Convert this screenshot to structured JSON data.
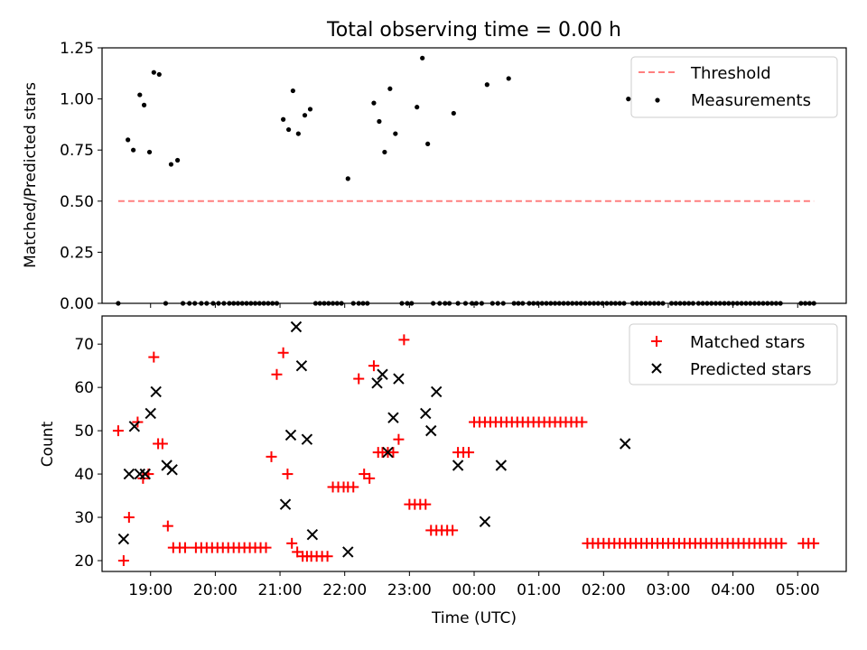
{
  "figure": {
    "title": "Total observing time = 0.00 h",
    "xlabel": "Time (UTC)"
  },
  "chart_data": [
    {
      "type": "scatter",
      "title": "Total observing time = 0.00 h",
      "ylabel": "Matched/Predicted stars",
      "xlim": [
        "18:15",
        "05:45"
      ],
      "ylim": [
        0,
        1.25
      ],
      "yticks": [
        0.0,
        0.25,
        0.5,
        0.75,
        1.0,
        1.25
      ],
      "ytick_labels": [
        "0.00",
        "0.25",
        "0.50",
        "0.75",
        "1.00",
        "1.25"
      ],
      "grid": false,
      "legend": "top-right",
      "threshold": {
        "name": "Threshold",
        "value": 0.5,
        "x_range": [
          "18:30",
          "05:15"
        ],
        "color": "#ff0000",
        "alpha": 0.5,
        "style": "dashed"
      },
      "series": [
        {
          "name": "Measurements",
          "marker": "dot",
          "color": "#000000",
          "x": [
            "18:30",
            "18:39",
            "18:44",
            "18:50",
            "18:54",
            "18:59",
            "19:03",
            "19:08",
            "19:14",
            "19:19",
            "19:25",
            "19:30",
            "19:36",
            "19:41",
            "19:47",
            "19:52",
            "19:58",
            "20:03",
            "20:08",
            "20:13",
            "20:17",
            "20:21",
            "20:25",
            "20:29",
            "20:33",
            "20:37",
            "20:41",
            "20:45",
            "20:49",
            "20:53",
            "20:57",
            "21:03",
            "21:08",
            "21:12",
            "21:17",
            "21:23",
            "21:28",
            "21:33",
            "21:37",
            "21:41",
            "21:45",
            "21:49",
            "21:53",
            "21:57",
            "22:03",
            "22:08",
            "22:13",
            "22:17",
            "22:21",
            "22:27",
            "22:32",
            "22:37",
            "22:42",
            "22:47",
            "22:53",
            "22:58",
            "23:02",
            "23:07",
            "23:12",
            "23:17",
            "23:22",
            "23:28",
            "23:33",
            "23:37",
            "23:41",
            "23:45",
            "23:52",
            "23:58",
            "00:02",
            "00:07",
            "00:12",
            "00:17",
            "00:22",
            "00:27",
            "00:32",
            "00:37",
            "00:41",
            "00:45",
            "00:51",
            "00:55",
            "00:59",
            "01:03",
            "01:07",
            "01:11",
            "01:15",
            "01:19",
            "01:23",
            "01:27",
            "01:31",
            "01:35",
            "01:39",
            "01:43",
            "01:47",
            "01:51",
            "01:55",
            "01:59",
            "02:03",
            "02:07",
            "02:11",
            "02:15",
            "02:19",
            "02:23",
            "02:27",
            "02:31",
            "02:35",
            "02:39",
            "02:43",
            "02:47",
            "02:51",
            "02:55",
            "03:03",
            "03:07",
            "03:11",
            "03:15",
            "03:19",
            "03:23",
            "03:28",
            "03:32",
            "03:36",
            "03:40",
            "03:44",
            "03:48",
            "03:52",
            "03:56",
            "04:00",
            "04:04",
            "04:08",
            "04:12",
            "04:16",
            "04:20",
            "04:24",
            "04:28",
            "04:32",
            "04:36",
            "04:40",
            "04:44",
            "05:03",
            "05:07",
            "05:11",
            "05:15"
          ],
          "y": [
            0,
            0.8,
            0.75,
            1.02,
            0.97,
            0.74,
            1.13,
            1.12,
            0,
            0.68,
            0.7,
            0,
            0,
            0,
            0,
            0,
            0,
            0,
            0,
            0,
            0,
            0,
            0,
            0,
            0,
            0,
            0,
            0,
            0,
            0,
            0,
            0.9,
            0.85,
            1.04,
            0.83,
            0.92,
            0.95,
            0,
            0,
            0,
            0,
            0,
            0,
            0,
            0.61,
            0,
            0,
            0,
            0,
            0.98,
            0.89,
            0.74,
            1.05,
            0.83,
            0,
            0,
            0,
            0.96,
            1.2,
            0.78,
            0,
            0,
            0,
            0,
            0.93,
            0,
            0,
            0,
            0,
            0,
            1.07,
            0,
            0,
            0,
            1.1,
            0,
            0,
            0,
            0,
            0,
            0,
            0,
            0,
            0,
            0,
            0,
            0,
            0,
            0,
            0,
            0,
            0,
            0,
            0,
            0,
            0,
            0,
            0,
            0,
            0,
            0,
            1.0,
            0,
            0,
            0,
            0,
            0,
            0,
            0,
            0,
            0,
            0,
            0,
            0,
            0,
            0,
            0,
            0,
            0,
            0,
            0,
            0,
            0,
            0,
            0,
            0,
            0,
            0,
            0,
            0,
            0,
            0,
            0,
            0,
            0,
            0,
            0,
            0,
            0,
            0
          ]
        }
      ]
    },
    {
      "type": "scatter",
      "xlabel": "Time (UTC)",
      "ylabel": "Count",
      "xlim": [
        "18:15",
        "05:45"
      ],
      "ylim": [
        17.5,
        76.5
      ],
      "yticks": [
        20,
        30,
        40,
        50,
        60,
        70
      ],
      "xticks": [
        "19:00",
        "20:00",
        "21:00",
        "22:00",
        "23:00",
        "00:00",
        "01:00",
        "02:00",
        "03:00",
        "04:00",
        "05:00"
      ],
      "grid": false,
      "legend": "top-right",
      "series": [
        {
          "name": "Matched stars",
          "marker": "plus",
          "color": "#ff0000",
          "x": [
            "18:30",
            "18:35",
            "18:40",
            "18:48",
            "18:53",
            "18:58",
            "19:03",
            "19:07",
            "19:11",
            "19:16",
            "19:21",
            "19:27",
            "19:32",
            "19:42",
            "19:47",
            "19:52",
            "19:57",
            "20:02",
            "20:07",
            "20:12",
            "20:17",
            "20:22",
            "20:27",
            "20:32",
            "20:37",
            "20:42",
            "20:47",
            "20:52",
            "20:57",
            "21:03",
            "21:07",
            "21:11",
            "21:16",
            "21:21",
            "21:25",
            "21:29",
            "21:34",
            "21:39",
            "21:44",
            "21:49",
            "21:54",
            "21:59",
            "22:03",
            "22:08",
            "22:13",
            "22:18",
            "22:23",
            "22:27",
            "22:31",
            "22:35",
            "22:40",
            "22:45",
            "22:50",
            "22:55",
            "23:00",
            "23:05",
            "23:10",
            "23:15",
            "23:20",
            "23:25",
            "23:30",
            "23:35",
            "23:40",
            "23:45",
            "23:50",
            "23:55",
            "00:00",
            "00:05",
            "00:10",
            "00:15",
            "00:20",
            "00:25",
            "00:30",
            "00:35",
            "00:40",
            "00:45",
            "00:50",
            "00:55",
            "01:00",
            "01:05",
            "01:10",
            "01:15",
            "01:20",
            "01:25",
            "01:30",
            "01:35",
            "01:40",
            "01:45",
            "01:50",
            "01:55",
            "02:00",
            "02:05",
            "02:10",
            "02:15",
            "02:20",
            "02:25",
            "02:30",
            "02:35",
            "02:40",
            "02:45",
            "02:50",
            "02:55",
            "03:00",
            "03:05",
            "03:10",
            "03:15",
            "03:20",
            "03:25",
            "03:30",
            "03:35",
            "03:40",
            "03:45",
            "03:50",
            "03:55",
            "04:00",
            "04:05",
            "04:10",
            "04:15",
            "04:20",
            "04:25",
            "04:30",
            "04:35",
            "04:40",
            "04:45",
            "05:05",
            "05:10",
            "05:15"
          ],
          "y": [
            50,
            20,
            30,
            52,
            39,
            40,
            67,
            47,
            47,
            28,
            23,
            23,
            23,
            23,
            23,
            23,
            23,
            23,
            23,
            23,
            23,
            23,
            23,
            23,
            23,
            23,
            23,
            44,
            63,
            68,
            40,
            24,
            22,
            21,
            21,
            21,
            21,
            21,
            21,
            37,
            37,
            37,
            37,
            37,
            62,
            40,
            39,
            65,
            45,
            45,
            45,
            45,
            48,
            71,
            33,
            33,
            33,
            33,
            27,
            27,
            27,
            27,
            27,
            45,
            45,
            45,
            52,
            52,
            52,
            52,
            52,
            52,
            52,
            52,
            52,
            52,
            52,
            52,
            52,
            52,
            52,
            52,
            52,
            52,
            52,
            52,
            52,
            24,
            24,
            24,
            24,
            24,
            24,
            24,
            24,
            24,
            24,
            24,
            24,
            24,
            24,
            24,
            24,
            24,
            24,
            24,
            24,
            24,
            24,
            24,
            24,
            24,
            24,
            24,
            24,
            24,
            24,
            24,
            24,
            24,
            24,
            24,
            24,
            24,
            24,
            24,
            24
          ]
        },
        {
          "name": "Predicted stars",
          "marker": "x",
          "color": "#000000",
          "x": [
            "18:35",
            "18:40",
            "18:45",
            "18:50",
            "18:55",
            "19:00",
            "19:05",
            "19:15",
            "19:20",
            "21:05",
            "21:10",
            "21:15",
            "21:20",
            "21:25",
            "21:30",
            "22:03",
            "22:30",
            "22:35",
            "22:40",
            "22:45",
            "22:50",
            "23:15",
            "23:20",
            "23:25",
            "23:45",
            "00:10",
            "00:25",
            "02:20"
          ],
          "y": [
            25,
            40,
            51,
            40,
            40,
            54,
            59,
            42,
            41,
            33,
            49,
            74,
            65,
            48,
            26,
            22,
            61,
            63,
            45,
            53,
            62,
            54,
            50,
            59,
            42,
            29,
            42,
            47
          ]
        }
      ]
    }
  ]
}
